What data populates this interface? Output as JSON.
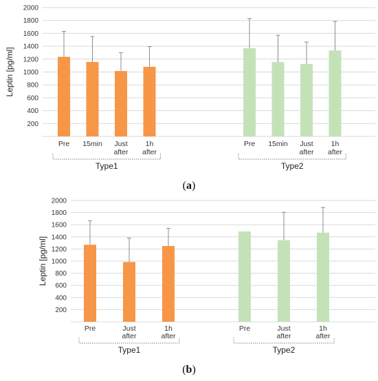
{
  "chart_data": [
    {
      "type": "bar",
      "panel": "a",
      "ylabel": "Leptin [pg/ml]",
      "yticks": [
        200,
        400,
        600,
        800,
        1000,
        1200,
        1400,
        1600,
        1800,
        2000
      ],
      "ylim": [
        0,
        2000
      ],
      "grid": true,
      "groups": [
        {
          "name": "Type1",
          "color": "#F79646",
          "categories": [
            "Pre",
            "15min",
            "Just after",
            "1h after"
          ],
          "values": [
            1235,
            1155,
            1015,
            1080
          ],
          "errors": [
            395,
            395,
            285,
            315
          ]
        },
        {
          "name": "Type2",
          "color": "#C4E2B8",
          "categories": [
            "Pre",
            "15min",
            "Just after",
            "1h after"
          ],
          "values": [
            1370,
            1155,
            1125,
            1335
          ],
          "errors": [
            460,
            415,
            340,
            450
          ]
        }
      ]
    },
    {
      "type": "bar",
      "panel": "b",
      "ylabel": "Leptin [pg/ml]",
      "yticks": [
        200,
        400,
        600,
        800,
        1000,
        1200,
        1400,
        1600,
        1800,
        2000
      ],
      "ylim": [
        0,
        2000
      ],
      "grid": true,
      "groups": [
        {
          "name": "Type1",
          "color": "#F79646",
          "categories": [
            "Pre",
            "Just after",
            "1h after"
          ],
          "values": [
            1270,
            985,
            1250
          ],
          "errors": [
            395,
            395,
            290
          ]
        },
        {
          "name": "Type2",
          "color": "#C4E2B8",
          "categories": [
            "Pre",
            "Just after",
            "1h after"
          ],
          "values": [
            1490,
            1345,
            1470
          ],
          "errors": [
            0,
            460,
            415
          ]
        }
      ]
    }
  ],
  "labels": {
    "a": "a",
    "b": "b"
  }
}
